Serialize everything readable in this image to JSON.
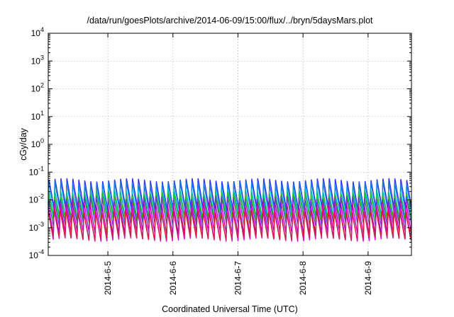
{
  "chart_data": {
    "type": "line",
    "title": "/data/run/goesPlots/archive/2014-06-09/15:00/flux/../bryn/5daysMars.plot",
    "xlabel": "Coordinated Universal Time (UTC)",
    "ylabel": "cGy/day",
    "yscale": "log",
    "ylim": [
      0.0001,
      10000
    ],
    "y_ticks": [
      {
        "value": 0.0001,
        "base": "10",
        "exp": "-4"
      },
      {
        "value": 0.001,
        "base": "10",
        "exp": "-3"
      },
      {
        "value": 0.01,
        "base": "10",
        "exp": "-2"
      },
      {
        "value": 0.1,
        "base": "10",
        "exp": "-1"
      },
      {
        "value": 1,
        "base": "10",
        "exp": "0"
      },
      {
        "value": 10,
        "base": "10",
        "exp": "1"
      },
      {
        "value": 100,
        "base": "10",
        "exp": "2"
      },
      {
        "value": 1000,
        "base": "10",
        "exp": "3"
      },
      {
        "value": 10000,
        "base": "10",
        "exp": "4"
      }
    ],
    "xlim": [
      "2014-06-04T02:00",
      "2014-06-09T16:00"
    ],
    "x_ticks": [
      {
        "value": "2014-06-05T00:00",
        "label": "2014-6-5"
      },
      {
        "value": "2014-06-06T00:00",
        "label": "2014-6-6"
      },
      {
        "value": "2014-06-07T00:00",
        "label": "2014-6-7"
      },
      {
        "value": "2014-06-08T00:00",
        "label": "2014-6-8"
      },
      {
        "value": "2014-06-09T00:00",
        "label": "2014-6-9"
      }
    ],
    "grid": true,
    "legend": "none",
    "oscillation_period_hours": 2.2,
    "series": [
      {
        "color": "#3030ff",
        "peak": 0.055,
        "trough": 0.0045
      },
      {
        "color": "#1080e0",
        "peak": 0.04,
        "trough": 0.0035
      },
      {
        "color": "#00b0a0",
        "peak": 0.022,
        "trough": 0.0022
      },
      {
        "color": "#20c020",
        "peak": 0.016,
        "trough": 0.0018
      },
      {
        "color": "#6040c0",
        "peak": 0.012,
        "trough": 0.0012
      },
      {
        "color": "#b000b0",
        "peak": 0.0075,
        "trough": 0.0006
      },
      {
        "color": "#e000e0",
        "peak": 0.005,
        "trough": 0.00035
      },
      {
        "color": "#d02040",
        "peak": 0.004,
        "trough": 0.0004
      }
    ]
  }
}
